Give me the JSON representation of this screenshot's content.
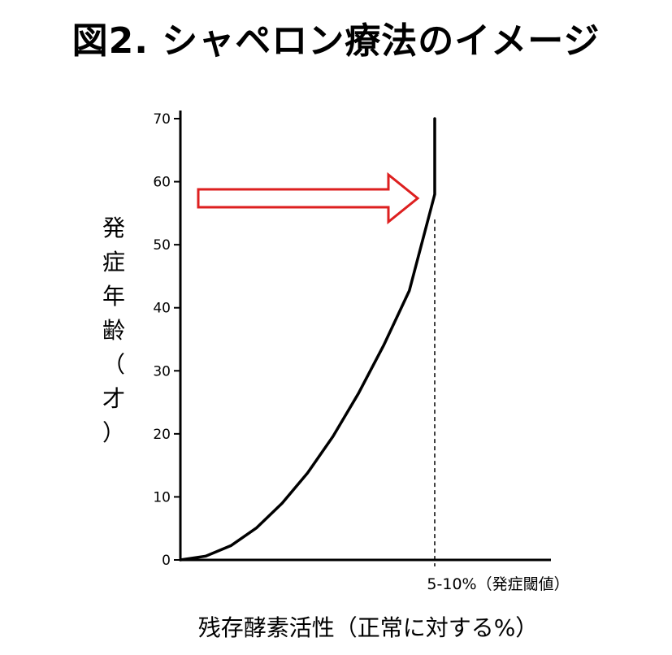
{
  "title": "図2. シャペロン療法のイメージ",
  "chart_data": {
    "type": "line",
    "title": "図2. シャペロン療法のイメージ",
    "xlabel": "残存酵素活性（正常に対する%）",
    "ylabel": "発症年齢（才）",
    "ylim": [
      0,
      70
    ],
    "yticks": [
      0,
      10,
      20,
      30,
      40,
      50,
      60,
      70
    ],
    "x_annotation": "5-10%（発症閾値）",
    "threshold_x": 1.0,
    "series": [
      {
        "x": [
          0,
          0.1,
          0.2,
          0.3,
          0.4,
          0.5,
          0.6,
          0.7,
          0.8,
          0.9,
          1.0,
          1.0
        ],
        "y": [
          0,
          0.6,
          2.3,
          5.1,
          9.0,
          13.8,
          19.6,
          26.4,
          34.1,
          42.7,
          58,
          70
        ]
      }
    ],
    "arrow_color": "#dd1f1f",
    "line_color": "#000000",
    "grid": false
  }
}
